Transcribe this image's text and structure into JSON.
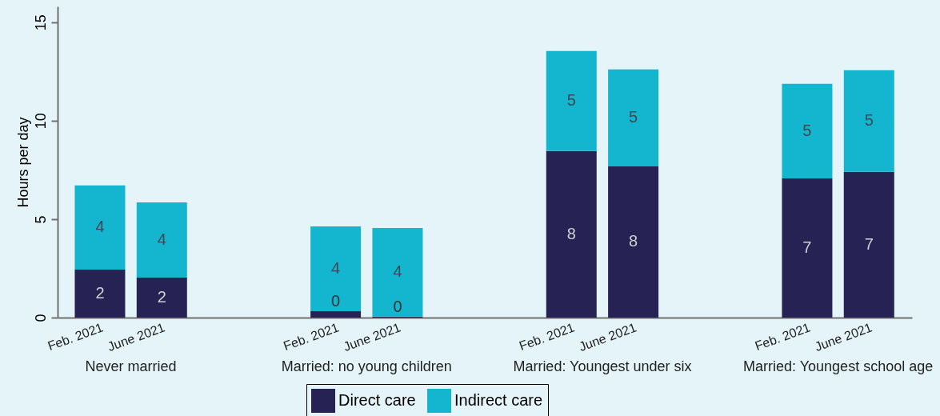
{
  "chart_data": {
    "type": "bar",
    "stacked": true,
    "ylabel": "Hours per day",
    "categories": [
      "Feb. 2021",
      "June 2021",
      "Feb. 2021",
      "June 2021",
      "Feb. 2021",
      "June 2021",
      "Feb. 2021",
      "June 2021"
    ],
    "annotations": [
      "Never married",
      "Married: no young children",
      "Married: Youngest under six",
      "Married: Youngest school age"
    ],
    "series": [
      {
        "name": "Direct care",
        "color": "#262254",
        "values": [
          2.44,
          2.03,
          0.33,
          0.05,
          8.46,
          7.68,
          7.07,
          7.4
        ],
        "value_labels": [
          "2",
          "2",
          "0",
          "0",
          "8",
          "8",
          "7",
          "7"
        ]
      },
      {
        "name": "Indirect care",
        "color": "#13b5cf",
        "values": [
          4.27,
          3.82,
          4.3,
          4.5,
          5.08,
          4.92,
          4.8,
          5.16
        ],
        "value_labels": [
          "4",
          "4",
          "4",
          "4",
          "5",
          "5",
          "5",
          "5"
        ]
      }
    ],
    "ylim": [
      0,
      15.8
    ],
    "yticks": [
      0,
      5,
      10,
      15
    ],
    "grid": false,
    "legend": "bottom"
  }
}
